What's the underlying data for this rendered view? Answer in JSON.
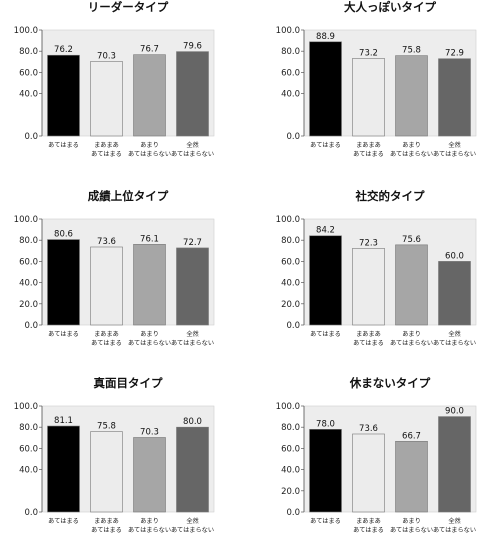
{
  "chart_data": [
    {
      "type": "bar",
      "title": "リーダータイプ",
      "categories": [
        "あてはまる",
        "まあまあ\nあてはまる",
        "あまり\nあてはまらない",
        "全然\nあてはまらない"
      ],
      "values": [
        76.2,
        70.3,
        76.7,
        79.6
      ],
      "value_labels": [
        "76.2",
        "70.3",
        "76.7",
        "79.6"
      ],
      "yticks": [
        "0.0",
        "40.0",
        "60.0",
        "80.0",
        "100.0"
      ],
      "ytick_values": [
        0,
        40,
        60,
        80,
        100
      ],
      "ylim": [
        0,
        100
      ],
      "grid": false
    },
    {
      "type": "bar",
      "title": "大人っぽいタイプ",
      "categories": [
        "あてはまる",
        "まあまあ\nあてはまる",
        "あまり\nあてはまらない",
        "全然\nあてはまらない"
      ],
      "values": [
        88.9,
        73.2,
        75.8,
        72.9
      ],
      "value_labels": [
        "88.9",
        "73.2",
        "75.8",
        "72.9"
      ],
      "yticks": [
        "0.0",
        "40.0",
        "60.0",
        "80.0",
        "100.0"
      ],
      "ytick_values": [
        0,
        40,
        60,
        80,
        100
      ],
      "ylim": [
        0,
        100
      ],
      "grid": false
    },
    {
      "type": "bar",
      "title": "成績上位タイプ",
      "categories": [
        "あてはまる",
        "まあまあ\nあてはまる",
        "あまり\nあてはまらない",
        "全然\nあてはまらない"
      ],
      "values": [
        80.6,
        73.6,
        76.1,
        72.7
      ],
      "value_labels": [
        "80.6",
        "73.6",
        "76.1",
        "72.7"
      ],
      "yticks": [
        "0.0",
        "20.0",
        "40.0",
        "60.0",
        "80.0",
        "100.0"
      ],
      "ytick_values": [
        0,
        20,
        40,
        60,
        80,
        100
      ],
      "ylim": [
        0,
        100
      ],
      "grid": false
    },
    {
      "type": "bar",
      "title": "社交的タイプ",
      "categories": [
        "あてはまる",
        "まあまあ\nあてはまる",
        "あまり\nあてはまらない",
        "全然\nあてはまらない"
      ],
      "values": [
        84.2,
        72.3,
        75.6,
        60.0
      ],
      "value_labels": [
        "84.2",
        "72.3",
        "75.6",
        "60.0"
      ],
      "yticks": [
        "0.0",
        "20.0",
        "40.0",
        "60.0",
        "80.0",
        "100.0"
      ],
      "ytick_values": [
        0,
        20,
        40,
        60,
        80,
        100
      ],
      "ylim": [
        0,
        100
      ],
      "grid": false
    },
    {
      "type": "bar",
      "title": "真面目タイプ",
      "categories": [
        "あてはまる",
        "まあまあ\nあてはまる",
        "あまり\nあてはまらない",
        "全然\nあてはまらない"
      ],
      "values": [
        81.1,
        75.8,
        70.3,
        80.0
      ],
      "value_labels": [
        "81.1",
        "75.8",
        "70.3",
        "80.0"
      ],
      "yticks": [
        "0.0",
        "40.0",
        "60.0",
        "80.0",
        "100.0"
      ],
      "ytick_values": [
        0,
        40,
        60,
        80,
        100
      ],
      "ylim": [
        0,
        100
      ],
      "grid": false
    },
    {
      "type": "bar",
      "title": "休まないタイプ",
      "categories": [
        "あてはまる",
        "まあまあ\nあてはまる",
        "あまり\nあてはまらない",
        "全然\nあてはまらない"
      ],
      "values": [
        78.0,
        73.6,
        66.7,
        90.0
      ],
      "value_labels": [
        "78.0",
        "73.6",
        "66.7",
        "90.0"
      ],
      "yticks": [
        "0.0",
        "20.0",
        "40.0",
        "60.0",
        "80.0",
        "100.0"
      ],
      "ytick_values": [
        0,
        20,
        40,
        60,
        80,
        100
      ],
      "ylim": [
        0,
        100
      ],
      "grid": false
    }
  ],
  "colors": {
    "bars": [
      "#000000",
      "#ececec",
      "#a6a6a6",
      "#666666"
    ],
    "plot_background": "#ededed",
    "axis": "#555555"
  }
}
